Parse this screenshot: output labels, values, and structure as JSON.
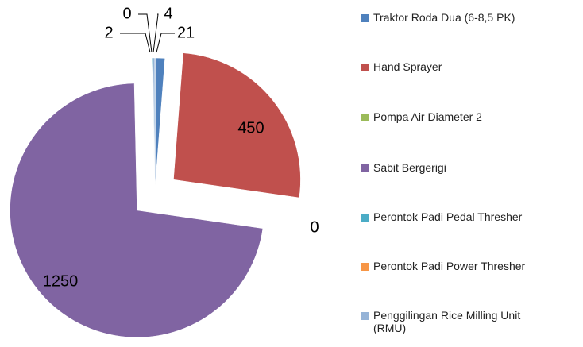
{
  "chart_data": {
    "type": "pie",
    "categories": [
      "Traktor Roda Dua (6-8,5 PK)",
      "Hand Sprayer",
      "Pompa Air Diameter 2",
      "Sabit Bergerigi",
      "Perontok Padi Pedal Thresher",
      "Perontok Padi Power Thresher",
      "Penggilingan Rice Milling Unit (RMU)"
    ],
    "values": [
      21,
      450,
      0,
      1250,
      2,
      0,
      4
    ],
    "colors": [
      "#4f81bd",
      "#c0504d",
      "#9bbb59",
      "#8064a2",
      "#4bacc6",
      "#f79646",
      "#95b3d7"
    ],
    "legend": "right"
  }
}
